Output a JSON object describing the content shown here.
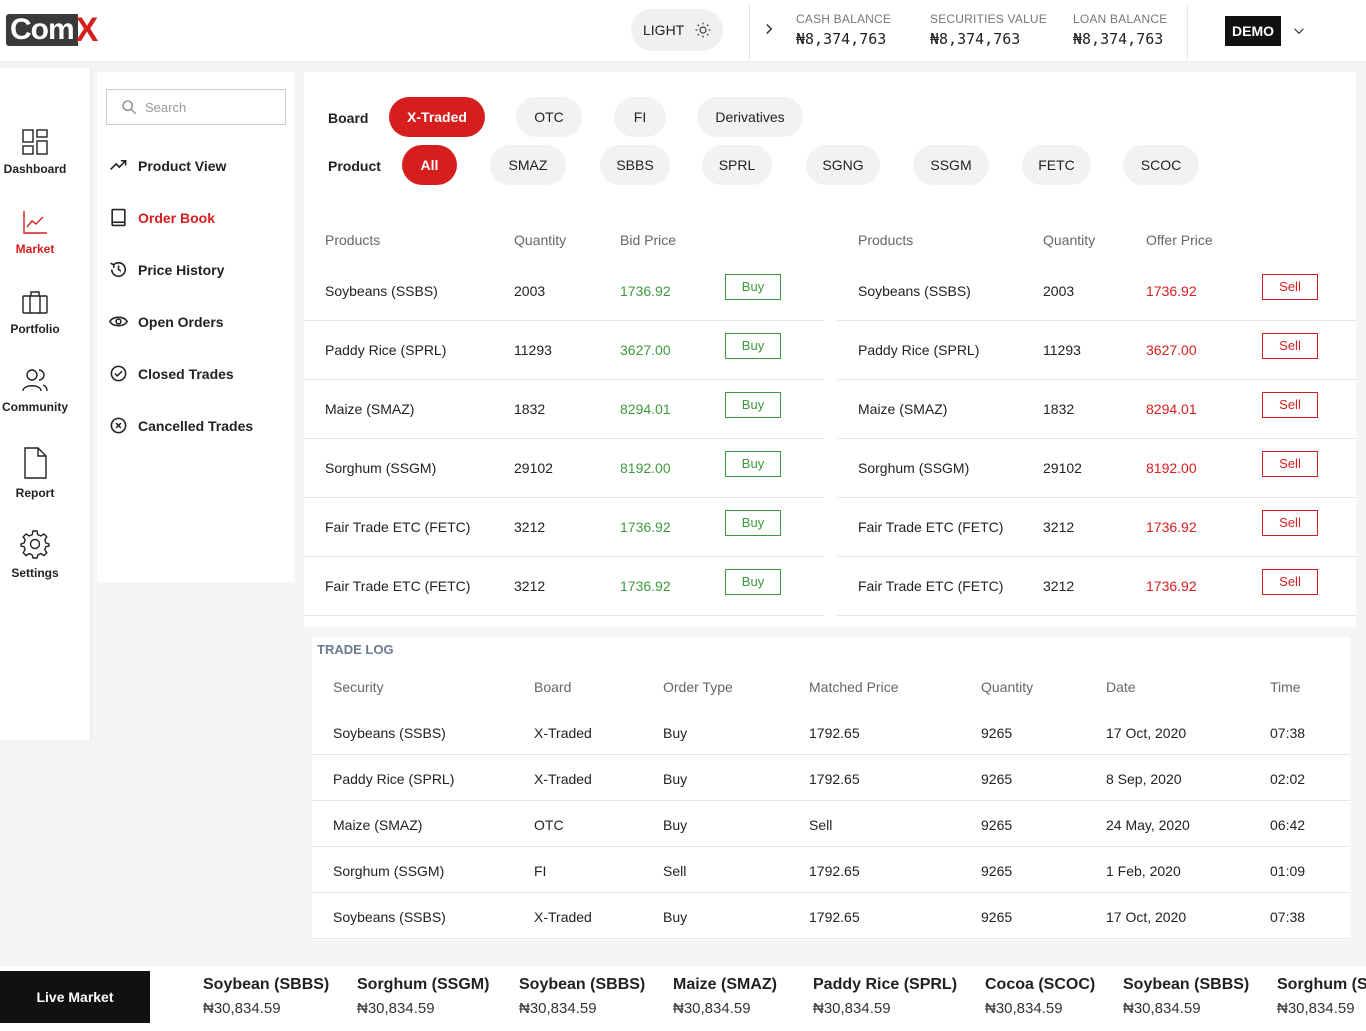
{
  "header": {
    "logo_com": "Com",
    "logo_x": "X",
    "theme_label": "LIGHT",
    "balances": [
      {
        "label": "CASH BALANCE",
        "value": "₦8,374,763"
      },
      {
        "label": "SECURITIES VALUE",
        "value": "₦8,374,763"
      },
      {
        "label": "LOAN BALANCE",
        "value": "₦8,374,763"
      }
    ],
    "account_mode": "DEMO"
  },
  "nav": [
    {
      "label": "Dashboard",
      "icon": "dashboard-icon"
    },
    {
      "label": "Market",
      "icon": "market-chart-icon",
      "active": true
    },
    {
      "label": "Portfolio",
      "icon": "briefcase-icon"
    },
    {
      "label": "Community",
      "icon": "users-icon"
    },
    {
      "label": "Report",
      "icon": "document-icon"
    },
    {
      "label": "Settings",
      "icon": "gear-icon"
    }
  ],
  "submenu": {
    "search_placeholder": "Search",
    "items": [
      {
        "label": "Product View",
        "icon": "trend-icon"
      },
      {
        "label": "Order Book",
        "icon": "book-icon",
        "active": true
      },
      {
        "label": "Price History",
        "icon": "history-icon"
      },
      {
        "label": "Open Orders",
        "icon": "eye-icon"
      },
      {
        "label": "Closed Trades",
        "icon": "check-circle-icon"
      },
      {
        "label": "Cancelled Trades",
        "icon": "x-circle-icon"
      }
    ]
  },
  "filters": {
    "board_label": "Board",
    "boards": [
      "X-Traded",
      "OTC",
      "FI",
      "Derivatives"
    ],
    "board_selected": "X-Traded",
    "product_label": "Product",
    "products": [
      "All",
      "SMAZ",
      "SBBS",
      "SPRL",
      "SGNG",
      "SSGM",
      "FETC",
      "SCOC"
    ],
    "product_selected": "All"
  },
  "bids": {
    "headers": [
      "Products",
      "Quantity",
      "Bid Price"
    ],
    "action_label": "Buy",
    "rows": [
      {
        "product": "Soybeans (SSBS)",
        "quantity": "2003",
        "price": "1736.92"
      },
      {
        "product": "Paddy Rice (SPRL)",
        "quantity": "11293",
        "price": "3627.00"
      },
      {
        "product": "Maize (SMAZ)",
        "quantity": "1832",
        "price": "8294.01"
      },
      {
        "product": "Sorghum (SSGM)",
        "quantity": "29102",
        "price": "8192.00"
      },
      {
        "product": "Fair Trade ETC (FETC)",
        "quantity": "3212",
        "price": "1736.92"
      },
      {
        "product": "Fair Trade ETC (FETC)",
        "quantity": "3212",
        "price": "1736.92"
      }
    ]
  },
  "offers": {
    "headers": [
      "Products",
      "Quantity",
      "Offer Price"
    ],
    "action_label": "Sell",
    "rows": [
      {
        "product": "Soybeans (SSBS)",
        "quantity": "2003",
        "price": "1736.92"
      },
      {
        "product": "Paddy Rice (SPRL)",
        "quantity": "11293",
        "price": "3627.00"
      },
      {
        "product": "Maize (SMAZ)",
        "quantity": "1832",
        "price": "8294.01"
      },
      {
        "product": "Sorghum (SSGM)",
        "quantity": "29102",
        "price": "8192.00"
      },
      {
        "product": "Fair Trade ETC (FETC)",
        "quantity": "3212",
        "price": "1736.92"
      },
      {
        "product": "Fair Trade ETC (FETC)",
        "quantity": "3212",
        "price": "1736.92"
      }
    ]
  },
  "trade_log": {
    "title": "TRADE LOG",
    "headers": [
      "Security",
      "Board",
      "Order Type",
      "Matched Price",
      "Quantity",
      "Date",
      "Time"
    ],
    "rows": [
      [
        "Soybeans (SSBS)",
        "X-Traded",
        "Buy",
        "1792.65",
        "9265",
        "17 Oct, 2020",
        "07:38"
      ],
      [
        "Paddy Rice (SPRL)",
        "X-Traded",
        "Buy",
        "1792.65",
        "9265",
        "8 Sep, 2020",
        "02:02"
      ],
      [
        "Maize (SMAZ)",
        "OTC",
        "Buy",
        "Sell",
        "9265",
        "24 May, 2020",
        "06:42"
      ],
      [
        "Sorghum (SSGM)",
        "FI",
        "Sell",
        "1792.65",
        "9265",
        "1 Feb, 2020",
        "01:09"
      ],
      [
        "Soybeans (SSBS)",
        "X-Traded",
        "Buy",
        "1792.65",
        "9265",
        "17 Oct, 2020",
        "07:38"
      ]
    ]
  },
  "live_market": {
    "label": "Live Market",
    "items": [
      {
        "name": "Soybean (SBBS)",
        "price": "₦30,834.59"
      },
      {
        "name": "Sorghum (SSGM)",
        "price": "₦30,834.59"
      },
      {
        "name": "Soybean (SBBS)",
        "price": "₦30,834.59"
      },
      {
        "name": "Maize (SMAZ)",
        "price": "₦30,834.59"
      },
      {
        "name": "Paddy Rice (SPRL)",
        "price": "₦30,834.59"
      },
      {
        "name": "Cocoa (SCOC)",
        "price": "₦30,834.59"
      },
      {
        "name": "Soybean (SBBS)",
        "price": "₦30,834.59"
      },
      {
        "name": "Sorghum (SSGM)",
        "price": "₦30,834.59"
      }
    ]
  },
  "colors": {
    "accent": "#d71e1e",
    "buy": "#3e9a3e",
    "sell": "#d71e1e"
  }
}
